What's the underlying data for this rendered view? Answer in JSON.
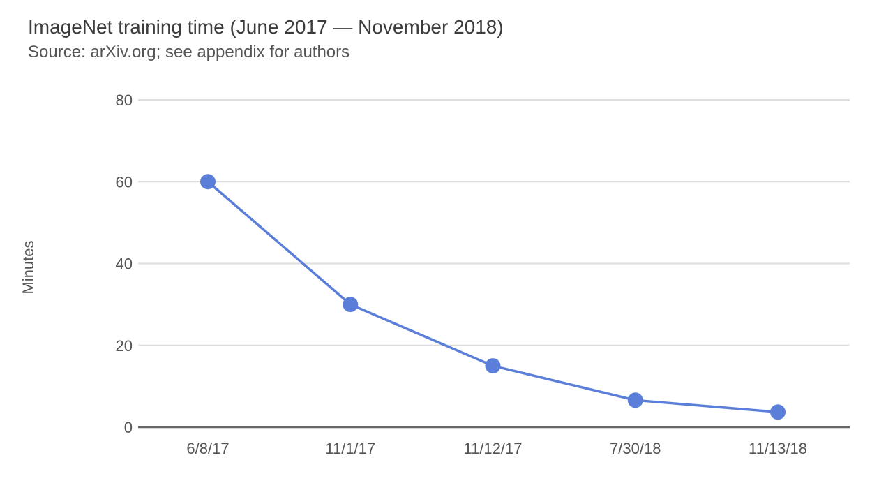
{
  "chart_data": {
    "type": "line",
    "title": "ImageNet training time (June 2017 — November 2018)",
    "subtitle": "Source: arXiv.org; see appendix for authors",
    "xlabel": "",
    "ylabel": "Minutes",
    "categories": [
      "6/8/17",
      "11/1/17",
      "11/12/17",
      "7/30/18",
      "11/13/18"
    ],
    "series": [
      {
        "values": [
          60,
          30,
          15,
          6.6,
          3.7
        ],
        "color": "#5b7fd9"
      }
    ],
    "ylim": [
      0,
      80
    ],
    "yticks": [
      0,
      20,
      40,
      60,
      80
    ],
    "grid": true,
    "legend": "none"
  }
}
